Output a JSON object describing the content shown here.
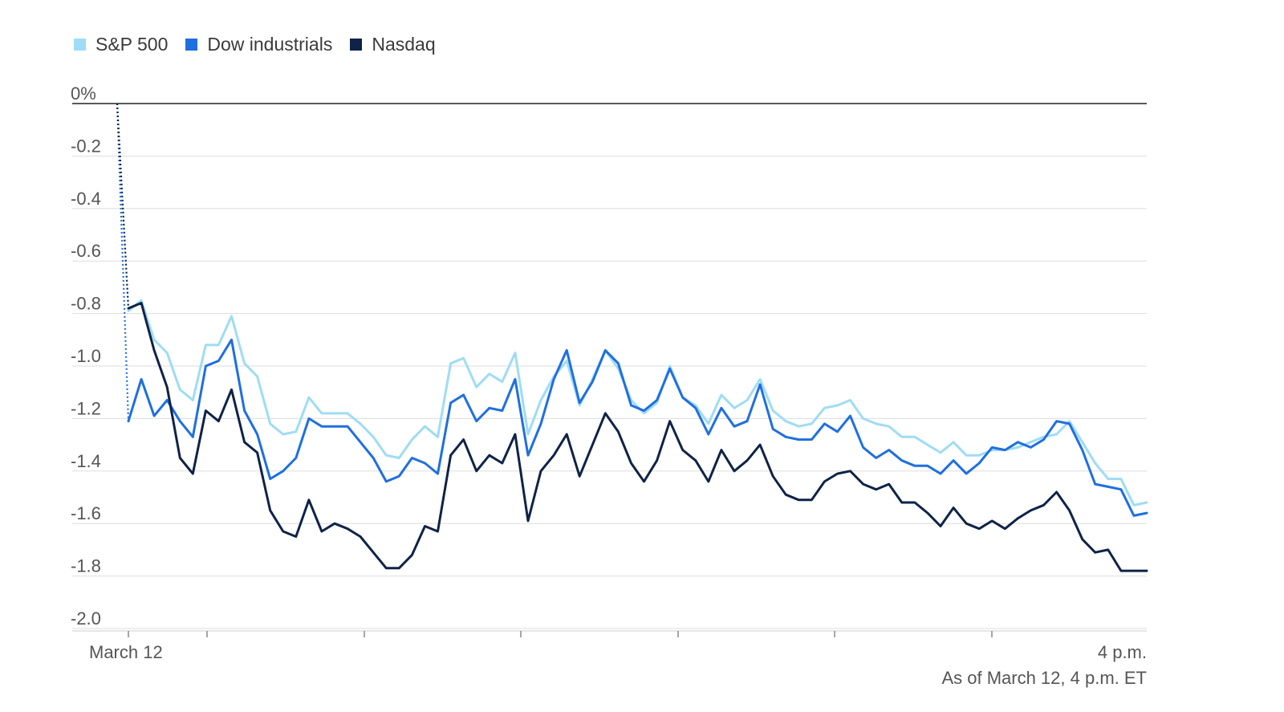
{
  "chart_data": {
    "type": "line",
    "title": "",
    "xlabel": "",
    "ylabel": "",
    "x_tick_labels": [
      "March 12",
      "4 p.m."
    ],
    "y_ticks": [
      {
        "value": 0,
        "label": "0%"
      },
      {
        "value": -0.2,
        "label": "-0.2"
      },
      {
        "value": -0.4,
        "label": "-0.4"
      },
      {
        "value": -0.6,
        "label": "-0.6"
      },
      {
        "value": -0.8,
        "label": "-0.8"
      },
      {
        "value": -1.0,
        "label": "-1.0"
      },
      {
        "value": -1.2,
        "label": "-1.2"
      },
      {
        "value": -1.4,
        "label": "-1.4"
      },
      {
        "value": -1.6,
        "label": "-1.6"
      },
      {
        "value": -1.8,
        "label": "-1.8"
      },
      {
        "value": -2.0,
        "label": "-2.0"
      }
    ],
    "ylim": [
      -2.05,
      0
    ],
    "grid": true,
    "legend_position": "top-left",
    "series": [
      {
        "name": "S&P 500",
        "color": "#9fdcf5",
        "values": [
          0,
          -0.79,
          -0.75,
          -0.9,
          -0.95,
          -1.09,
          -1.13,
          -0.92,
          -0.92,
          -0.81,
          -0.99,
          -1.04,
          -1.22,
          -1.26,
          -1.25,
          -1.12,
          -1.18,
          -1.18,
          -1.18,
          -1.22,
          -1.27,
          -1.34,
          -1.35,
          -1.28,
          -1.23,
          -1.27,
          -0.99,
          -0.97,
          -1.08,
          -1.03,
          -1.06,
          -0.95,
          -1.26,
          -1.13,
          -1.04,
          -0.98,
          -1.15,
          -1.05,
          -0.94,
          -1.01,
          -1.13,
          -1.18,
          -1.14,
          -1.0,
          -1.12,
          -1.15,
          -1.22,
          -1.11,
          -1.16,
          -1.13,
          -1.05,
          -1.17,
          -1.21,
          -1.23,
          -1.22,
          -1.16,
          -1.15,
          -1.13,
          -1.2,
          -1.22,
          -1.23,
          -1.27,
          -1.27,
          -1.3,
          -1.33,
          -1.29,
          -1.34,
          -1.34,
          -1.32,
          -1.32,
          -1.31,
          -1.29,
          -1.27,
          -1.26,
          -1.21,
          -1.29,
          -1.37,
          -1.43,
          -1.43,
          -1.53,
          -1.52
        ]
      },
      {
        "name": "Dow industrials",
        "color": "#1f6fe0",
        "values": [
          0,
          -1.21,
          -1.05,
          -1.19,
          -1.13,
          -1.21,
          -1.27,
          -1.0,
          -0.98,
          -0.9,
          -1.17,
          -1.26,
          -1.43,
          -1.4,
          -1.35,
          -1.2,
          -1.23,
          -1.23,
          -1.23,
          -1.29,
          -1.35,
          -1.44,
          -1.42,
          -1.35,
          -1.37,
          -1.41,
          -1.14,
          -1.11,
          -1.21,
          -1.16,
          -1.17,
          -1.05,
          -1.34,
          -1.22,
          -1.05,
          -0.94,
          -1.14,
          -1.06,
          -0.94,
          -0.99,
          -1.15,
          -1.17,
          -1.13,
          -1.01,
          -1.12,
          -1.16,
          -1.26,
          -1.16,
          -1.23,
          -1.21,
          -1.07,
          -1.24,
          -1.27,
          -1.28,
          -1.28,
          -1.22,
          -1.25,
          -1.19,
          -1.31,
          -1.35,
          -1.32,
          -1.36,
          -1.38,
          -1.38,
          -1.41,
          -1.36,
          -1.41,
          -1.37,
          -1.31,
          -1.32,
          -1.29,
          -1.31,
          -1.28,
          -1.21,
          -1.22,
          -1.32,
          -1.45,
          -1.46,
          -1.47,
          -1.57,
          -1.56
        ]
      },
      {
        "name": "Nasdaq",
        "color": "#0f2348",
        "values": [
          0,
          -0.78,
          -0.76,
          -0.94,
          -1.08,
          -1.35,
          -1.41,
          -1.17,
          -1.21,
          -1.09,
          -1.29,
          -1.33,
          -1.55,
          -1.63,
          -1.65,
          -1.51,
          -1.63,
          -1.6,
          -1.62,
          -1.65,
          -1.71,
          -1.77,
          -1.77,
          -1.72,
          -1.61,
          -1.63,
          -1.34,
          -1.28,
          -1.4,
          -1.34,
          -1.37,
          -1.26,
          -1.59,
          -1.4,
          -1.34,
          -1.26,
          -1.42,
          -1.3,
          -1.18,
          -1.25,
          -1.37,
          -1.44,
          -1.36,
          -1.21,
          -1.32,
          -1.36,
          -1.44,
          -1.32,
          -1.4,
          -1.36,
          -1.3,
          -1.42,
          -1.49,
          -1.51,
          -1.51,
          -1.44,
          -1.41,
          -1.4,
          -1.45,
          -1.47,
          -1.45,
          -1.52,
          -1.52,
          -1.56,
          -1.61,
          -1.54,
          -1.6,
          -1.62,
          -1.59,
          -1.62,
          -1.58,
          -1.55,
          -1.53,
          -1.48,
          -1.55,
          -1.66,
          -1.71,
          -1.7,
          -1.78,
          -1.78,
          -1.78
        ]
      }
    ]
  },
  "footnote": "As of March 12, 4 p.m. ET"
}
